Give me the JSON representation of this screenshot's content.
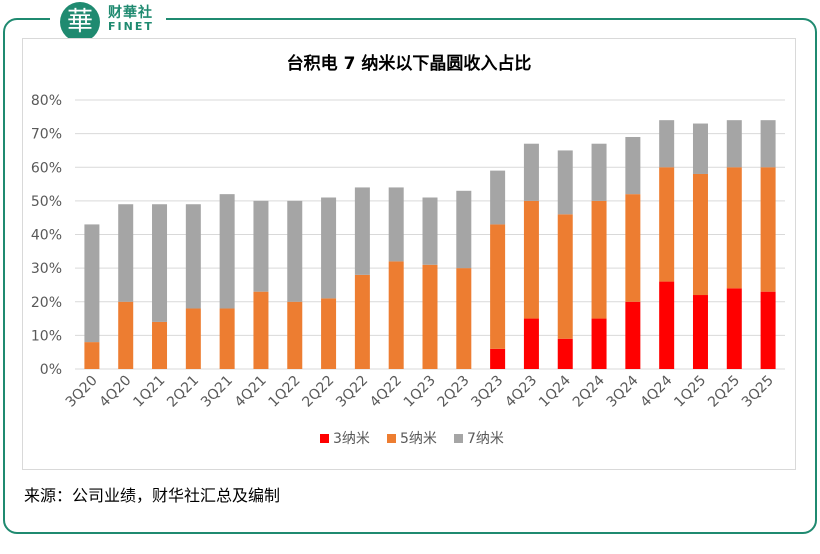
{
  "brand": {
    "logo_char": "華",
    "name_cn": "财華社",
    "name_en": "FINET",
    "color": "#1f8a70"
  },
  "source_text": "来源：公司业绩，财华社汇总及编制",
  "colors": {
    "s3": "#ff0000",
    "s5": "#ed7d31",
    "s7": "#a5a5a5"
  },
  "chart_data": {
    "type": "bar",
    "stacked": true,
    "title": "台积电 7 纳米以下晶圆收入占比",
    "categories": [
      "3Q20",
      "4Q20",
      "1Q21",
      "2Q21",
      "3Q21",
      "4Q21",
      "1Q22",
      "2Q22",
      "3Q22",
      "4Q22",
      "1Q23",
      "2Q23",
      "3Q23",
      "4Q23",
      "1Q24",
      "2Q24",
      "3Q24",
      "4Q24",
      "1Q25",
      "2Q25",
      "3Q25"
    ],
    "series": [
      {
        "name": "3纳米",
        "color": "#ff0000",
        "values": [
          0,
          0,
          0,
          0,
          0,
          0,
          0,
          0,
          0,
          0,
          0,
          0,
          6,
          15,
          9,
          15,
          20,
          26,
          22,
          24,
          23
        ]
      },
      {
        "name": "5纳米",
        "color": "#ed7d31",
        "values": [
          8,
          20,
          14,
          18,
          18,
          23,
          20,
          21,
          28,
          32,
          31,
          30,
          37,
          35,
          37,
          35,
          32,
          34,
          36,
          36,
          37
        ]
      },
      {
        "name": "7纳米",
        "color": "#a5a5a5",
        "values": [
          35,
          29,
          35,
          31,
          34,
          27,
          30,
          30,
          26,
          22,
          20,
          23,
          16,
          17,
          19,
          17,
          17,
          14,
          15,
          14,
          14
        ]
      }
    ],
    "yticks": [
      "0%",
      "10%",
      "20%",
      "30%",
      "40%",
      "50%",
      "60%",
      "70%",
      "80%"
    ],
    "ylim": [
      0,
      80
    ],
    "grid": true,
    "legend": "bottom"
  }
}
